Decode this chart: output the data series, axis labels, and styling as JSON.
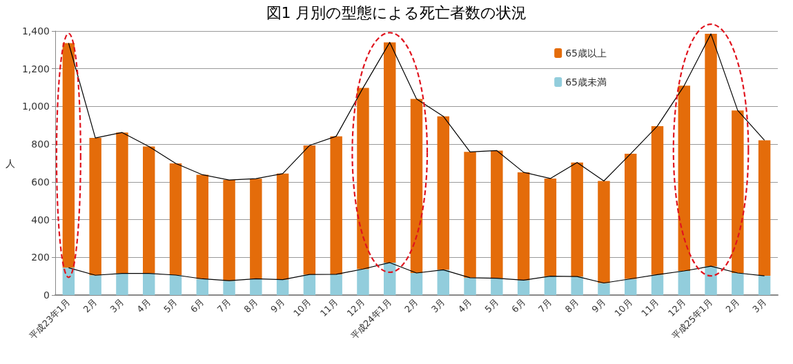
{
  "chart_data": {
    "type": "bar",
    "title": "図1 月別の型態による死亡者数の状況",
    "ylabel": "人",
    "categories": [
      "平成23年1月",
      "2月",
      "3月",
      "4月",
      "5月",
      "6月",
      "7月",
      "8月",
      "9月",
      "10月",
      "11月",
      "12月",
      "平成24年1月",
      "2月",
      "3月",
      "4月",
      "5月",
      "6月",
      "7月",
      "8月",
      "9月",
      "10月",
      "11月",
      "12月",
      "平成25年1月",
      "2月",
      "3月"
    ],
    "series": [
      {
        "name": "65歳未満",
        "color": "#92cddc",
        "values": [
          145,
          105,
          115,
          115,
          106,
          86,
          76,
          86,
          82,
          109,
          110,
          138,
          172,
          117,
          134,
          92,
          89,
          79,
          100,
          98,
          64,
          86,
          108,
          128,
          153,
          117,
          102
        ]
      },
      {
        "name": "65歳以上",
        "color": "#e46c0a",
        "values": [
          1191,
          728,
          747,
          673,
          592,
          552,
          534,
          531,
          562,
          684,
          732,
          960,
          1168,
          923,
          814,
          667,
          677,
          572,
          518,
          605,
          541,
          663,
          788,
          982,
          1232,
          862,
          719
        ]
      },
      {
        "type": "line",
        "color": "#000000",
        "values": [
          1336,
          833,
          862,
          788,
          698,
          638,
          610,
          617,
          644,
          793,
          842,
          1098,
          1340,
          1040,
          948,
          759,
          766,
          651,
          618,
          703,
          605,
          749,
          896,
          1110,
          1385,
          979,
          821
        ]
      },
      {
        "type": "line",
        "color": "#000000",
        "values": [
          145,
          105,
          115,
          115,
          106,
          86,
          76,
          86,
          82,
          109,
          110,
          138,
          172,
          117,
          134,
          92,
          89,
          79,
          100,
          98,
          64,
          86,
          108,
          128,
          153,
          117,
          102
        ]
      }
    ],
    "stacked": true,
    "ylim": [
      0,
      1400
    ],
    "yticks": [
      0,
      200,
      400,
      600,
      800,
      {
        "value": 1000,
        "label": "1,000"
      },
      {
        "value": 1200,
        "label": "1,200"
      },
      {
        "value": 1400,
        "label": "1,400"
      }
    ],
    "grid": "y",
    "legend": "top right",
    "marker": "none",
    "line_style": "solid"
  }
}
